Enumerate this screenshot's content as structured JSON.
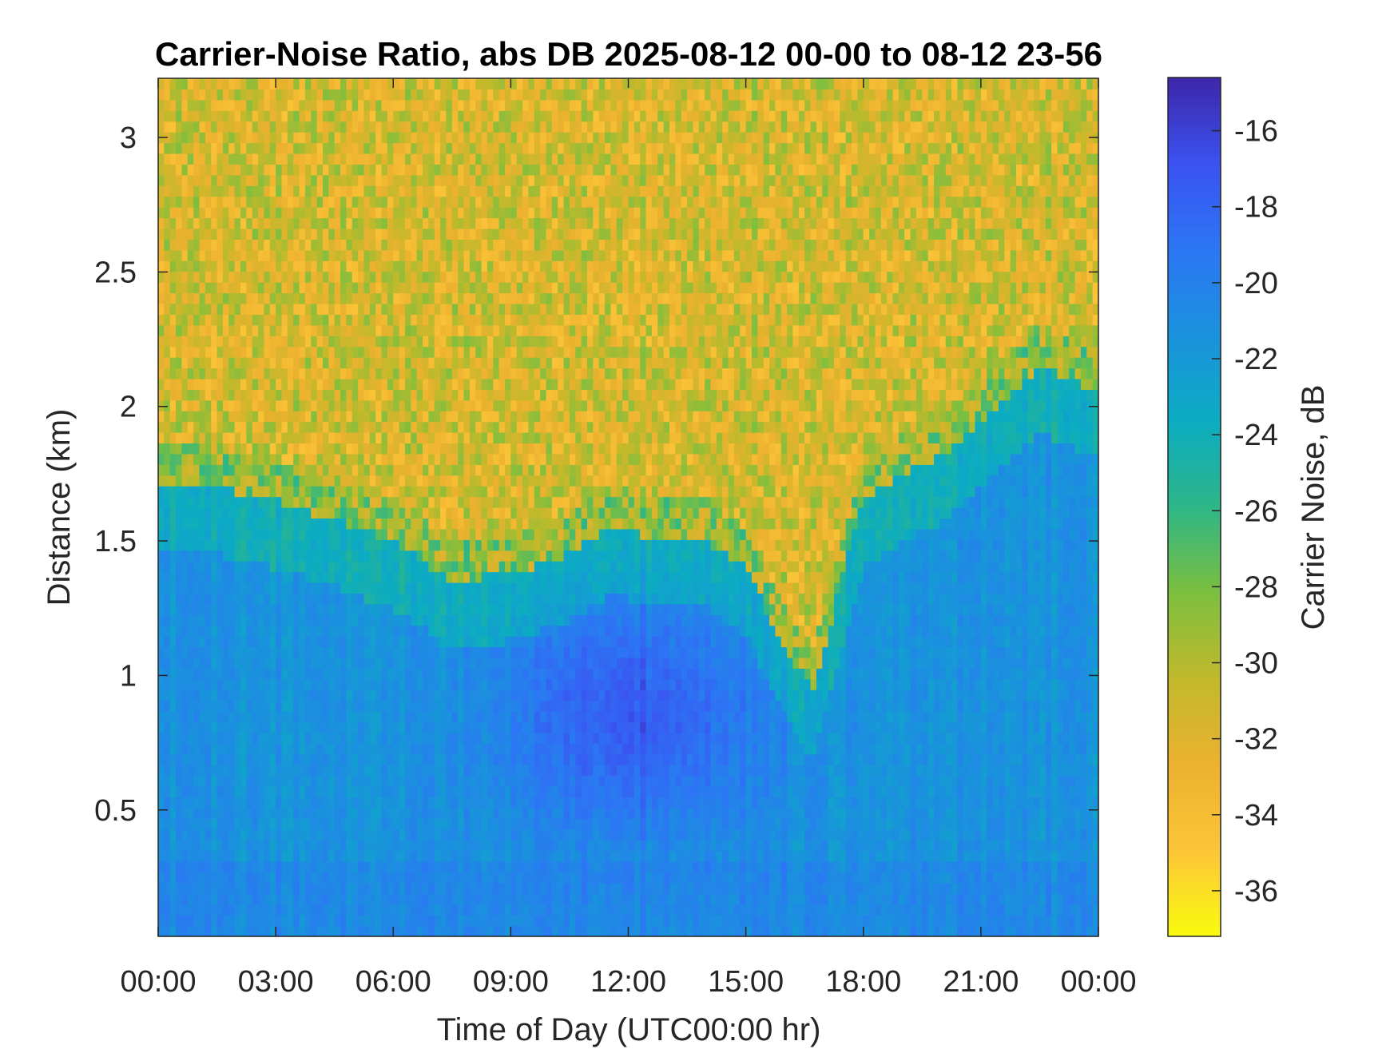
{
  "chart_data": {
    "type": "heatmap",
    "title": "Carrier-Noise Ratio, abs DB 2025-08-12 00-00 to 08-12 23-56",
    "xlabel": "Time of Day (UTC00:00 hr)",
    "ylabel": "Distance (km)",
    "colorbar_label": "Carrier Noise, dB",
    "x_range_hours": [
      0,
      24
    ],
    "y_range_km": [
      0.03,
      3.22
    ],
    "clim_dB": [
      -37.2,
      -14.6
    ],
    "x_ticks": [
      {
        "value": 0,
        "label": "00:00"
      },
      {
        "value": 3,
        "label": "03:00"
      },
      {
        "value": 6,
        "label": "06:00"
      },
      {
        "value": 9,
        "label": "09:00"
      },
      {
        "value": 12,
        "label": "12:00"
      },
      {
        "value": 15,
        "label": "15:00"
      },
      {
        "value": 18,
        "label": "18:00"
      },
      {
        "value": 21,
        "label": "21:00"
      },
      {
        "value": 24,
        "label": "00:00"
      }
    ],
    "y_ticks": [
      {
        "value": 0.5,
        "label": "0.5"
      },
      {
        "value": 1,
        "label": "1"
      },
      {
        "value": 1.5,
        "label": "1.5"
      },
      {
        "value": 2,
        "label": "2"
      },
      {
        "value": 2.5,
        "label": "2.5"
      },
      {
        "value": 3,
        "label": "3"
      }
    ],
    "colorbar_ticks": [
      {
        "value": -16,
        "label": "-16"
      },
      {
        "value": -18,
        "label": "-18"
      },
      {
        "value": -20,
        "label": "-20"
      },
      {
        "value": -22,
        "label": "-22"
      },
      {
        "value": -24,
        "label": "-24"
      },
      {
        "value": -26,
        "label": "-26"
      },
      {
        "value": -28,
        "label": "-28"
      },
      {
        "value": -30,
        "label": "-30"
      },
      {
        "value": -32,
        "label": "-32"
      },
      {
        "value": -34,
        "label": "-34"
      },
      {
        "value": -36,
        "label": "-36"
      }
    ],
    "colormap": "parula_reversed",
    "signal_top_km": [
      [
        0.0,
        1.72
      ],
      [
        1.5,
        1.7
      ],
      [
        3.0,
        1.65
      ],
      [
        4.5,
        1.58
      ],
      [
        6.0,
        1.5
      ],
      [
        7.5,
        1.35
      ],
      [
        9.0,
        1.38
      ],
      [
        10.5,
        1.45
      ],
      [
        11.5,
        1.55
      ],
      [
        12.5,
        1.52
      ],
      [
        14.0,
        1.5
      ],
      [
        15.0,
        1.4
      ],
      [
        16.0,
        1.1
      ],
      [
        16.7,
        0.95
      ],
      [
        18.0,
        1.65
      ],
      [
        19.0,
        1.75
      ],
      [
        20.0,
        1.82
      ],
      [
        21.0,
        1.95
      ],
      [
        22.5,
        2.15
      ],
      [
        24.0,
        2.05
      ]
    ],
    "signal_core": {
      "time_hours": 12.1,
      "distance_km": 0.85,
      "value_dB": -17
    }
  }
}
